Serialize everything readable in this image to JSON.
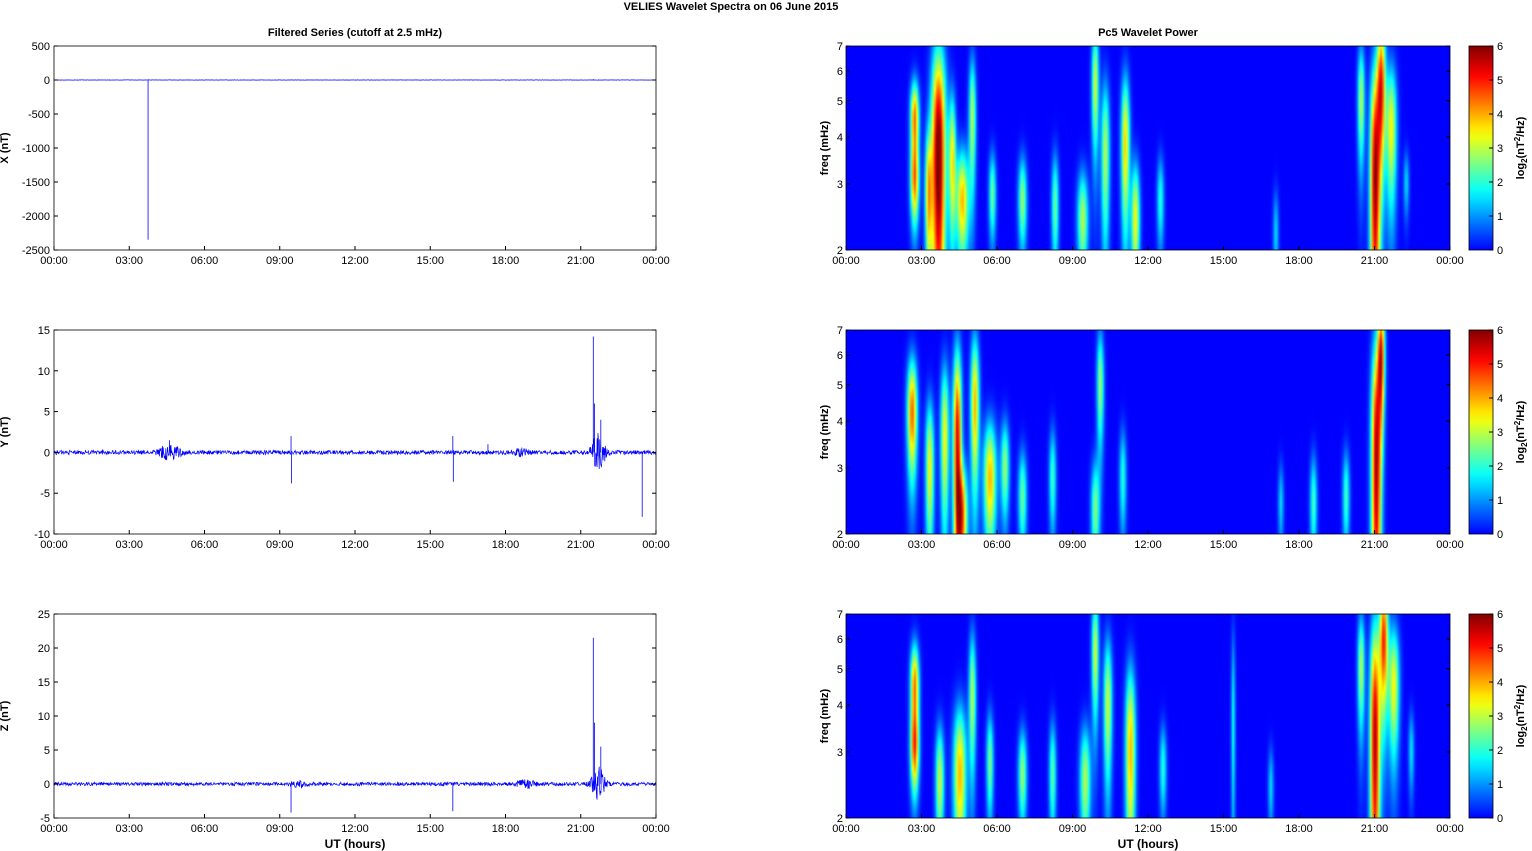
{
  "suptitle": "VELIES Wavelet Spectra on 06 June      2015",
  "chart_data": [
    {
      "type": "line",
      "title": "Filtered Series (cutoff at 2.5 mHz)",
      "xlabel": "",
      "ylabel": "X (nT)",
      "xticks": [
        "00:00",
        "03:00",
        "06:00",
        "09:00",
        "12:00",
        "15:00",
        "18:00",
        "21:00",
        "00:00"
      ],
      "xlim": [
        0,
        24
      ],
      "ylim": [
        -2500,
        500
      ],
      "yticks": [
        -2500,
        -2000,
        -1500,
        -1000,
        -500,
        0,
        500
      ],
      "color": "#0000ff",
      "baseline": 0,
      "noise_amplitude": 2,
      "spikes": [
        {
          "x": 3.75,
          "y": -2350
        },
        {
          "x": 3.78,
          "y": 8
        },
        {
          "x": 21.5,
          "y": 12
        },
        {
          "x": 21.7,
          "y": -8
        }
      ]
    },
    {
      "type": "line",
      "title": "",
      "xlabel": "",
      "ylabel": "Y (nT)",
      "xticks": [
        "00:00",
        "03:00",
        "06:00",
        "09:00",
        "12:00",
        "15:00",
        "18:00",
        "21:00",
        "00:00"
      ],
      "xlim": [
        0,
        24
      ],
      "ylim": [
        -10,
        15
      ],
      "yticks": [
        -10,
        -5,
        0,
        5,
        10,
        15
      ],
      "color": "#0000ff",
      "baseline": 0,
      "noise_amplitude": 0.25,
      "bursts": [
        {
          "x": 4.6,
          "width": 0.8,
          "amp": 0.9
        },
        {
          "x": 18.6,
          "width": 0.6,
          "amp": 0.4
        },
        {
          "x": 21.7,
          "width": 0.5,
          "amp": 2.5
        }
      ],
      "spikes": [
        {
          "x": 4.6,
          "y": 1.5
        },
        {
          "x": 9.45,
          "y": 2.0
        },
        {
          "x": 9.47,
          "y": -3.8
        },
        {
          "x": 15.9,
          "y": 2.0
        },
        {
          "x": 15.92,
          "y": -3.6
        },
        {
          "x": 17.3,
          "y": 1.0
        },
        {
          "x": 21.5,
          "y": 14.2
        },
        {
          "x": 21.55,
          "y": 6.0
        },
        {
          "x": 21.65,
          "y": -1.8
        },
        {
          "x": 21.8,
          "y": 4.0
        },
        {
          "x": 23.45,
          "y": -7.9
        }
      ]
    },
    {
      "type": "line",
      "title": "",
      "xlabel": "UT (hours)",
      "ylabel": "Z (nT)",
      "xticks": [
        "00:00",
        "03:00",
        "06:00",
        "09:00",
        "12:00",
        "15:00",
        "18:00",
        "21:00",
        "00:00"
      ],
      "xlim": [
        0,
        24
      ],
      "ylim": [
        -5,
        25
      ],
      "yticks": [
        -5,
        0,
        5,
        10,
        15,
        20,
        25
      ],
      "color": "#0000ff",
      "baseline": 0,
      "noise_amplitude": 0.25,
      "bursts": [
        {
          "x": 9.8,
          "width": 0.8,
          "amp": 0.35
        },
        {
          "x": 18.8,
          "width": 0.7,
          "amp": 0.5
        },
        {
          "x": 21.7,
          "width": 0.5,
          "amp": 2.5
        }
      ],
      "spikes": [
        {
          "x": 9.45,
          "y": -4.2
        },
        {
          "x": 15.9,
          "y": -4.0
        },
        {
          "x": 21.5,
          "y": 21.5
        },
        {
          "x": 21.55,
          "y": 9.0
        },
        {
          "x": 21.65,
          "y": -2.3
        },
        {
          "x": 21.8,
          "y": 5.5
        }
      ]
    },
    {
      "type": "heatmap",
      "title": "Pc5 Wavelet Power",
      "xlabel": "",
      "ylabel": "freq (mHz)",
      "colorbar_label": "log2(nT²/Hz)",
      "colorbar_ticks": [
        0,
        1,
        2,
        3,
        4,
        5,
        6
      ],
      "colormap": "jet",
      "xticks": [
        "00:00",
        "03:00",
        "06:00",
        "09:00",
        "12:00",
        "15:00",
        "18:00",
        "21:00",
        "00:00"
      ],
      "xlim": [
        0,
        24
      ],
      "ylim_mhz": [
        2,
        7
      ],
      "yticks": [
        2,
        3,
        4,
        5,
        6,
        7
      ],
      "yscale": "log",
      "blobs": [
        {
          "t": 2.7,
          "f": 4.5,
          "sx": 0.12,
          "sy": 0.35,
          "v": 4.5
        },
        {
          "t": 2.7,
          "f": 3.0,
          "sx": 0.12,
          "sy": 0.25,
          "v": 4.0
        },
        {
          "t": 3.25,
          "f": 2.8,
          "sx": 0.1,
          "sy": 0.4,
          "v": 3.5
        },
        {
          "t": 3.65,
          "f": 3.5,
          "sx": 0.2,
          "sy": 1.0,
          "v": 6.5
        },
        {
          "t": 4.2,
          "f": 3.5,
          "sx": 0.1,
          "sy": 0.5,
          "v": 3.5
        },
        {
          "t": 4.6,
          "f": 2.7,
          "sx": 0.18,
          "sy": 0.3,
          "v": 4.0
        },
        {
          "t": 5.0,
          "f": 4.5,
          "sx": 0.1,
          "sy": 0.6,
          "v": 3.0
        },
        {
          "t": 5.8,
          "f": 2.8,
          "sx": 0.1,
          "sy": 0.25,
          "v": 2.5
        },
        {
          "t": 7.0,
          "f": 2.7,
          "sx": 0.12,
          "sy": 0.25,
          "v": 2.8
        },
        {
          "t": 8.3,
          "f": 2.6,
          "sx": 0.1,
          "sy": 0.3,
          "v": 2.5
        },
        {
          "t": 9.4,
          "f": 2.4,
          "sx": 0.15,
          "sy": 0.25,
          "v": 3.0
        },
        {
          "t": 9.9,
          "f": 5.5,
          "sx": 0.1,
          "sy": 0.7,
          "v": 3.2
        },
        {
          "t": 10.3,
          "f": 3.6,
          "sx": 0.12,
          "sy": 0.6,
          "v": 3.0
        },
        {
          "t": 11.1,
          "f": 3.8,
          "sx": 0.12,
          "sy": 0.6,
          "v": 3.8
        },
        {
          "t": 11.5,
          "f": 2.4,
          "sx": 0.12,
          "sy": 0.3,
          "v": 3.5
        },
        {
          "t": 12.5,
          "f": 2.7,
          "sx": 0.1,
          "sy": 0.25,
          "v": 2.0
        },
        {
          "t": 17.1,
          "f": 2.2,
          "sx": 0.08,
          "sy": 0.2,
          "v": 1.5
        },
        {
          "t": 20.5,
          "f": 5.0,
          "sx": 0.1,
          "sy": 0.6,
          "v": 3.0
        },
        {
          "t": 21.05,
          "f": 3.0,
          "sx": 0.14,
          "sy": 0.9,
          "v": 5.8
        },
        {
          "t": 21.3,
          "f": 5.5,
          "sx": 0.12,
          "sy": 0.8,
          "v": 5.0
        },
        {
          "t": 21.7,
          "f": 4.2,
          "sx": 0.15,
          "sy": 0.6,
          "v": 3.5
        },
        {
          "t": 22.3,
          "f": 3.0,
          "sx": 0.08,
          "sy": 0.2,
          "v": 1.5
        }
      ]
    },
    {
      "type": "heatmap",
      "title": "",
      "xlabel": "",
      "ylabel": "freq (mHz)",
      "colorbar_label": "log2(nT²/Hz)",
      "colorbar_ticks": [
        0,
        1,
        2,
        3,
        4,
        5,
        6
      ],
      "colormap": "jet",
      "xticks": [
        "00:00",
        "03:00",
        "06:00",
        "09:00",
        "12:00",
        "15:00",
        "18:00",
        "21:00",
        "00:00"
      ],
      "xlim": [
        0,
        24
      ],
      "ylim_mhz": [
        2,
        7
      ],
      "yticks": [
        2,
        3,
        4,
        5,
        6,
        7
      ],
      "yscale": "log",
      "blobs": [
        {
          "t": 2.6,
          "f": 4.2,
          "sx": 0.14,
          "sy": 0.5,
          "v": 4.6
        },
        {
          "t": 3.3,
          "f": 3.0,
          "sx": 0.12,
          "sy": 0.45,
          "v": 3.5
        },
        {
          "t": 3.9,
          "f": 3.6,
          "sx": 0.12,
          "sy": 0.6,
          "v": 3.5
        },
        {
          "t": 4.4,
          "f": 3.5,
          "sx": 0.12,
          "sy": 0.8,
          "v": 5.5
        },
        {
          "t": 4.6,
          "f": 2.2,
          "sx": 0.15,
          "sy": 0.25,
          "v": 4.2
        },
        {
          "t": 5.1,
          "f": 4.4,
          "sx": 0.12,
          "sy": 0.7,
          "v": 4.0
        },
        {
          "t": 5.7,
          "f": 2.8,
          "sx": 0.18,
          "sy": 0.35,
          "v": 4.0
        },
        {
          "t": 6.3,
          "f": 3.0,
          "sx": 0.12,
          "sy": 0.3,
          "v": 2.8
        },
        {
          "t": 7.0,
          "f": 2.5,
          "sx": 0.12,
          "sy": 0.25,
          "v": 2.5
        },
        {
          "t": 8.2,
          "f": 2.8,
          "sx": 0.1,
          "sy": 0.3,
          "v": 2.2
        },
        {
          "t": 9.9,
          "f": 2.3,
          "sx": 0.12,
          "sy": 0.25,
          "v": 2.6
        },
        {
          "t": 10.1,
          "f": 5.0,
          "sx": 0.1,
          "sy": 0.6,
          "v": 2.8
        },
        {
          "t": 11.0,
          "f": 2.8,
          "sx": 0.1,
          "sy": 0.3,
          "v": 2.0
        },
        {
          "t": 17.3,
          "f": 2.4,
          "sx": 0.08,
          "sy": 0.2,
          "v": 1.5
        },
        {
          "t": 18.6,
          "f": 2.4,
          "sx": 0.1,
          "sy": 0.25,
          "v": 2.2
        },
        {
          "t": 19.9,
          "f": 2.5,
          "sx": 0.1,
          "sy": 0.25,
          "v": 2.2
        },
        {
          "t": 21.1,
          "f": 3.0,
          "sx": 0.14,
          "sy": 1.0,
          "v": 5.8
        },
        {
          "t": 21.3,
          "f": 6.0,
          "sx": 0.1,
          "sy": 0.7,
          "v": 5.0
        }
      ]
    },
    {
      "type": "heatmap",
      "title": "",
      "xlabel": "UT (hours)",
      "ylabel": "freq (mHz)",
      "colorbar_label": "log2(nT²/Hz)",
      "colorbar_ticks": [
        0,
        1,
        2,
        3,
        4,
        5,
        6
      ],
      "colormap": "jet",
      "xticks": [
        "00:00",
        "03:00",
        "06:00",
        "09:00",
        "12:00",
        "15:00",
        "18:00",
        "21:00",
        "00:00"
      ],
      "xlim": [
        0,
        24
      ],
      "ylim_mhz": [
        2,
        7
      ],
      "yticks": [
        2,
        3,
        4,
        5,
        6,
        7
      ],
      "yscale": "log",
      "blobs": [
        {
          "t": 2.7,
          "f": 4.5,
          "sx": 0.12,
          "sy": 0.4,
          "v": 4.5
        },
        {
          "t": 2.7,
          "f": 3.0,
          "sx": 0.12,
          "sy": 0.25,
          "v": 4.0
        },
        {
          "t": 3.7,
          "f": 2.5,
          "sx": 0.12,
          "sy": 0.3,
          "v": 3.2
        },
        {
          "t": 4.5,
          "f": 2.6,
          "sx": 0.18,
          "sy": 0.4,
          "v": 4.0
        },
        {
          "t": 5.0,
          "f": 4.2,
          "sx": 0.1,
          "sy": 0.6,
          "v": 3.0
        },
        {
          "t": 5.7,
          "f": 2.8,
          "sx": 0.1,
          "sy": 0.3,
          "v": 2.6
        },
        {
          "t": 7.0,
          "f": 2.6,
          "sx": 0.12,
          "sy": 0.25,
          "v": 2.8
        },
        {
          "t": 8.2,
          "f": 2.6,
          "sx": 0.1,
          "sy": 0.3,
          "v": 2.4
        },
        {
          "t": 9.5,
          "f": 2.5,
          "sx": 0.15,
          "sy": 0.3,
          "v": 3.0
        },
        {
          "t": 9.9,
          "f": 5.5,
          "sx": 0.1,
          "sy": 0.7,
          "v": 3.2
        },
        {
          "t": 10.4,
          "f": 4.0,
          "sx": 0.12,
          "sy": 0.6,
          "v": 3.2
        },
        {
          "t": 11.3,
          "f": 3.0,
          "sx": 0.14,
          "sy": 0.6,
          "v": 4.0
        },
        {
          "t": 12.6,
          "f": 2.7,
          "sx": 0.1,
          "sy": 0.25,
          "v": 2.0
        },
        {
          "t": 15.4,
          "f": 3.5,
          "sx": 0.06,
          "sy": 0.8,
          "v": 1.8
        },
        {
          "t": 16.9,
          "f": 2.4,
          "sx": 0.08,
          "sy": 0.2,
          "v": 1.5
        },
        {
          "t": 20.5,
          "f": 5.0,
          "sx": 0.1,
          "sy": 0.6,
          "v": 3.0
        },
        {
          "t": 21.05,
          "f": 3.2,
          "sx": 0.14,
          "sy": 1.0,
          "v": 5.8
        },
        {
          "t": 21.4,
          "f": 6.0,
          "sx": 0.12,
          "sy": 0.8,
          "v": 5.0
        },
        {
          "t": 21.8,
          "f": 4.5,
          "sx": 0.15,
          "sy": 0.6,
          "v": 3.5
        },
        {
          "t": 22.5,
          "f": 3.0,
          "sx": 0.08,
          "sy": 0.25,
          "v": 1.6
        }
      ]
    }
  ]
}
